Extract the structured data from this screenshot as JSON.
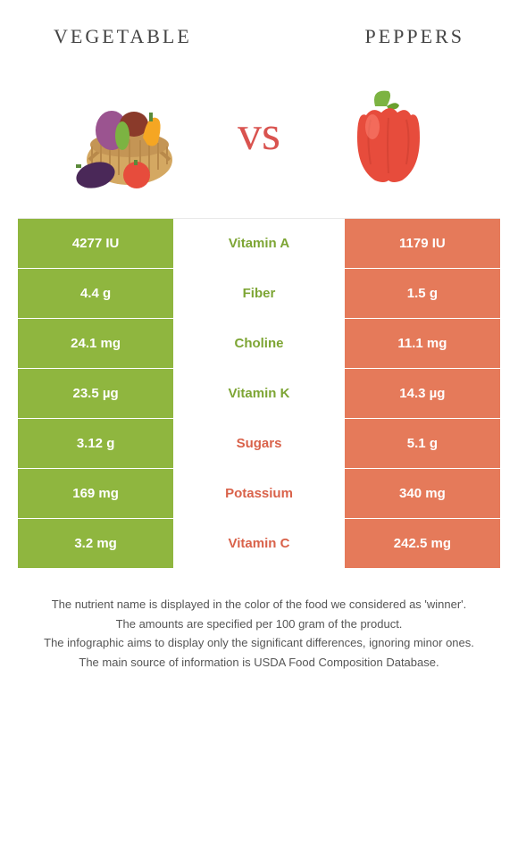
{
  "header": {
    "left_title": "Vegetable",
    "right_title": "Peppers"
  },
  "vs_label": "vs",
  "colors": {
    "left_bg": "#8fb63f",
    "right_bg": "#e57a5a",
    "winner_left": "#7da534",
    "winner_right": "#d9624a",
    "row_border": "#ffffff"
  },
  "rows": [
    {
      "left": "4277 IU",
      "mid": "Vitamin A",
      "right": "1179 IU",
      "winner": "left"
    },
    {
      "left": "4.4 g",
      "mid": "Fiber",
      "right": "1.5 g",
      "winner": "left"
    },
    {
      "left": "24.1 mg",
      "mid": "Choline",
      "right": "11.1 mg",
      "winner": "left"
    },
    {
      "left": "23.5 µg",
      "mid": "Vitamin K",
      "right": "14.3 µg",
      "winner": "left"
    },
    {
      "left": "3.12 g",
      "mid": "Sugars",
      "right": "5.1 g",
      "winner": "right"
    },
    {
      "left": "169 mg",
      "mid": "Potassium",
      "right": "340 mg",
      "winner": "right"
    },
    {
      "left": "3.2 mg",
      "mid": "Vitamin C",
      "right": "242.5 mg",
      "winner": "right"
    }
  ],
  "footer": {
    "line1": "The nutrient name is displayed in the color of the food we considered as 'winner'.",
    "line2": "The amounts are specified per 100 gram of the product.",
    "line3": "The infographic aims to display only the significant differences, ignoring minor ones.",
    "line4": "The main source of information is USDA Food Composition Database."
  }
}
